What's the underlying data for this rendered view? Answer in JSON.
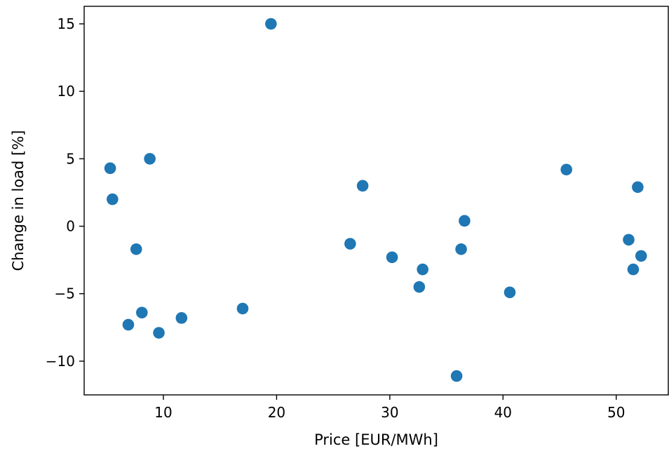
{
  "chart_data": {
    "type": "scatter",
    "title": "",
    "xlabel": "Price [EUR/MWh]",
    "ylabel": "Change in load [%]",
    "xlim": [
      3.0,
      54.6
    ],
    "ylim": [
      -12.5,
      16.3
    ],
    "xticks": [
      10,
      20,
      30,
      40,
      50
    ],
    "yticks": [
      -10,
      -5,
      0,
      5,
      10,
      15
    ],
    "xtick_labels": [
      "10",
      "20",
      "30",
      "40",
      "50"
    ],
    "ytick_labels": [
      "−10",
      "−5",
      "0",
      "5",
      "10",
      "15"
    ],
    "grid": false,
    "color": "#1f77b4",
    "points": [
      {
        "x": 5.3,
        "y": 4.3
      },
      {
        "x": 5.5,
        "y": 2.0
      },
      {
        "x": 6.9,
        "y": -7.3
      },
      {
        "x": 7.6,
        "y": -1.7
      },
      {
        "x": 8.1,
        "y": -6.4
      },
      {
        "x": 8.8,
        "y": 5.0
      },
      {
        "x": 9.6,
        "y": -7.9
      },
      {
        "x": 11.6,
        "y": -6.8
      },
      {
        "x": 17.0,
        "y": -6.1
      },
      {
        "x": 19.5,
        "y": 15.0
      },
      {
        "x": 26.5,
        "y": -1.3
      },
      {
        "x": 27.6,
        "y": 3.0
      },
      {
        "x": 30.2,
        "y": -2.3
      },
      {
        "x": 32.6,
        "y": -4.5
      },
      {
        "x": 32.9,
        "y": -3.2
      },
      {
        "x": 35.9,
        "y": -11.1
      },
      {
        "x": 36.3,
        "y": -1.7
      },
      {
        "x": 36.6,
        "y": 0.4
      },
      {
        "x": 40.6,
        "y": -4.9
      },
      {
        "x": 45.6,
        "y": 4.2
      },
      {
        "x": 51.1,
        "y": -1.0
      },
      {
        "x": 51.5,
        "y": -3.2
      },
      {
        "x": 51.9,
        "y": 2.9
      },
      {
        "x": 52.2,
        "y": -2.2
      }
    ]
  }
}
